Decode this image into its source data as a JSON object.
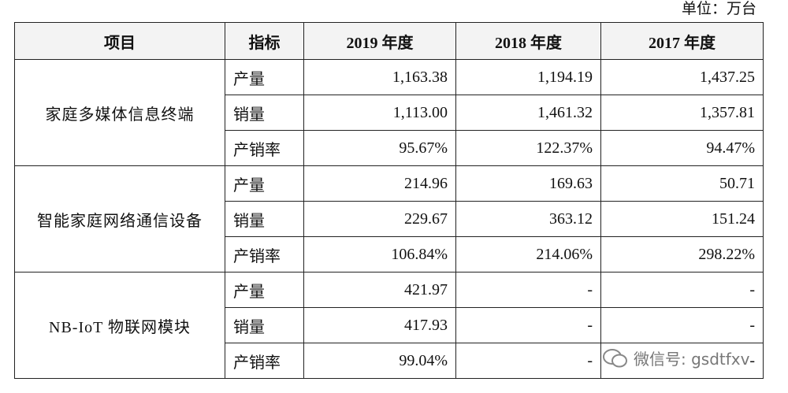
{
  "unit": "单位：万台",
  "table": {
    "header": [
      "项目",
      "指标",
      "2019 年度",
      "2018 年度",
      "2017 年度"
    ],
    "groups": [
      {
        "name": "家庭多媒体信息终端",
        "rows": [
          [
            "产量",
            "1,163.38",
            "1,194.19",
            "1,437.25"
          ],
          [
            "销量",
            "1,113.00",
            "1,461.32",
            "1,357.81"
          ],
          [
            "产销率",
            "95.67%",
            "122.37%",
            "94.47%"
          ]
        ]
      },
      {
        "name": "智能家庭网络通信设备",
        "rows": [
          [
            "产量",
            "214.96",
            "169.63",
            "50.71"
          ],
          [
            "销量",
            "229.67",
            "363.12",
            "151.24"
          ],
          [
            "产销率",
            "106.84%",
            "214.06%",
            "298.22%"
          ]
        ]
      },
      {
        "name": "NB-IoT 物联网模块",
        "rows": [
          [
            "产量",
            "421.97",
            "-",
            "-"
          ],
          [
            "销量",
            "417.93",
            "-",
            "-"
          ],
          [
            "产销率",
            "99.04%",
            "-",
            "-"
          ]
        ]
      }
    ]
  },
  "watermark": "微信号: gsdtfxv"
}
